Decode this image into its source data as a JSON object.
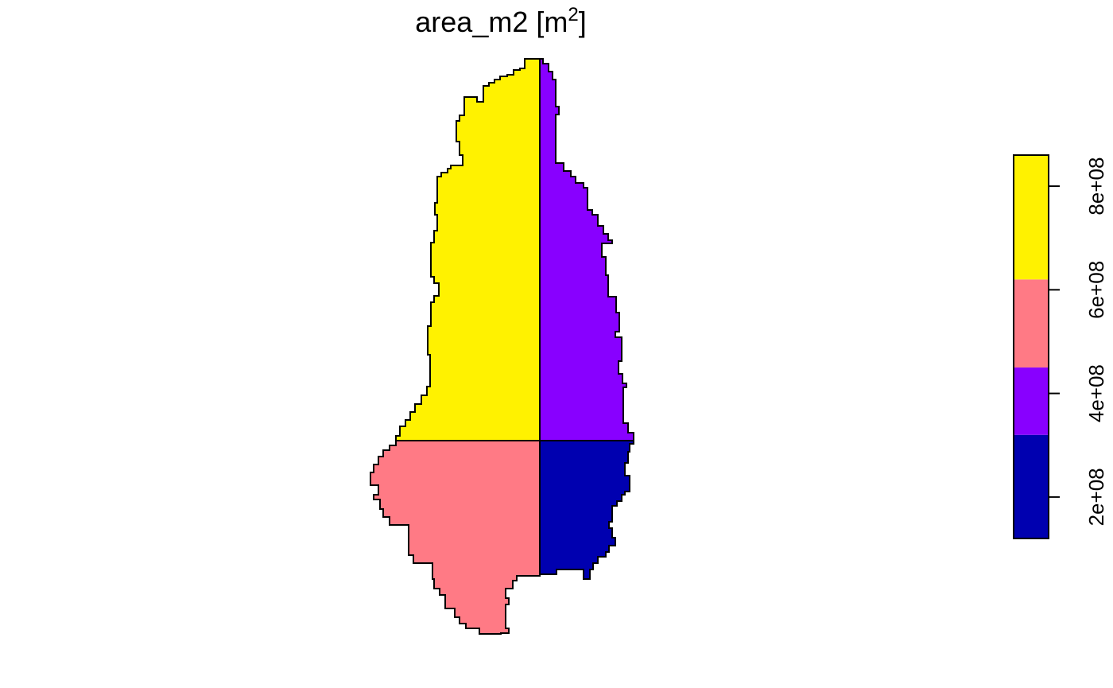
{
  "map": {
    "title": {
      "main": "area_m2 [m",
      "superscript": "2",
      "close": "]"
    },
    "regions": [
      {
        "id": "northwest",
        "color": "#FFF200"
      },
      {
        "id": "northeast",
        "color": "#8800FF"
      },
      {
        "id": "southwest",
        "color": "#FF7A85"
      },
      {
        "id": "southeast",
        "color": "#0000B0"
      }
    ],
    "legend": {
      "breaks": [
        120000000,
        320000000,
        450000000,
        620000000,
        860000000
      ],
      "colors": [
        "#0000B0",
        "#8800FF",
        "#FF7A85",
        "#FFF200"
      ],
      "ticks": [
        {
          "value": 200000000,
          "label": "2e+08"
        },
        {
          "value": 400000000,
          "label": "4e+08"
        },
        {
          "value": 600000000,
          "label": "6e+08"
        },
        {
          "value": 800000000,
          "label": "8e+08"
        }
      ]
    }
  }
}
